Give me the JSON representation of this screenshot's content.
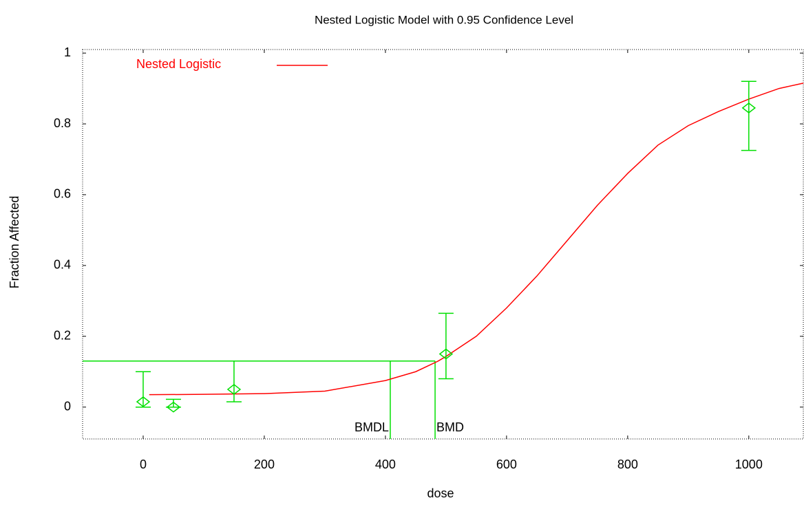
{
  "chart_data": {
    "type": "scatter",
    "title": "Nested Logistic Model with 0.95 Confidence Level",
    "x_label": "dose",
    "y_label": "Fraction Affected",
    "xlim": [
      -100,
      1090
    ],
    "ylim": [
      -0.09,
      1.01
    ],
    "xticks": [
      0,
      200,
      400,
      600,
      800,
      1000
    ],
    "yticks": [
      0,
      0.2,
      0.4,
      0.6,
      0.8,
      1
    ],
    "curve": {
      "name": "Nested Logistic",
      "color": "#ff0000",
      "x": [
        10,
        100,
        200,
        300,
        400,
        450,
        487,
        500,
        550,
        600,
        650,
        700,
        750,
        800,
        850,
        900,
        950,
        1000,
        1050,
        1090
      ],
      "values": [
        0.035,
        0.036,
        0.038,
        0.045,
        0.075,
        0.1,
        0.13,
        0.143,
        0.2,
        0.28,
        0.37,
        0.47,
        0.57,
        0.66,
        0.74,
        0.795,
        0.835,
        0.87,
        0.9,
        0.915
      ]
    },
    "points": {
      "color": "#00e000",
      "x": [
        0,
        50,
        150,
        500,
        1000
      ],
      "values": [
        0.015,
        0.0,
        0.05,
        0.15,
        0.845
      ],
      "lower": [
        0.0,
        0.0,
        0.015,
        0.08,
        0.725
      ],
      "upper": [
        0.1,
        0.022,
        0.13,
        0.265,
        0.92
      ]
    },
    "bmr_level": 0.13,
    "bmdl": {
      "value": 408,
      "label": "BMDL"
    },
    "bmd": {
      "value": 482,
      "label": "BMD"
    }
  }
}
